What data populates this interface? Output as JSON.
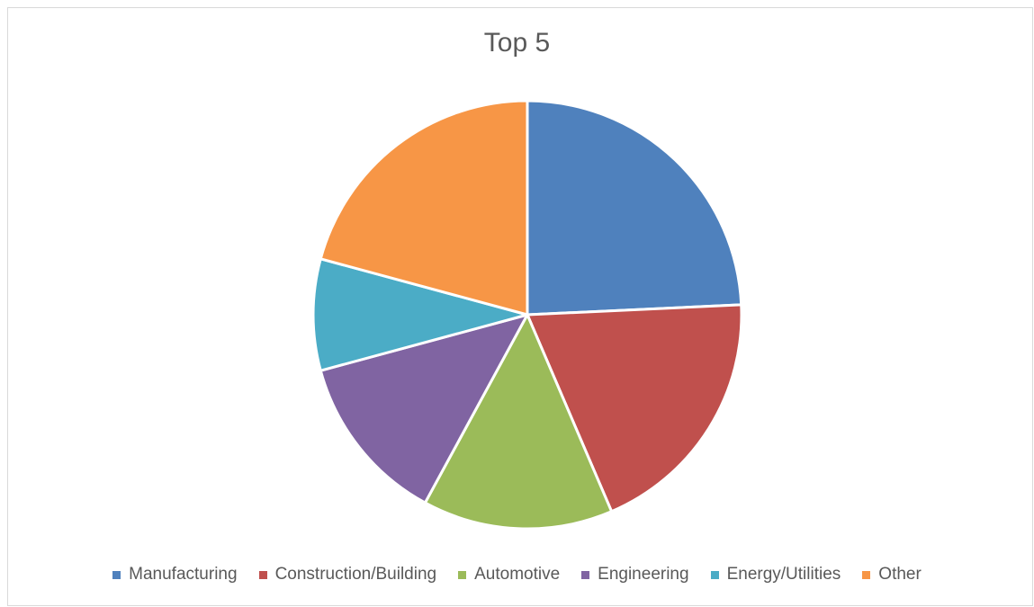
{
  "chart_data": {
    "type": "pie",
    "title": "Top 5",
    "legend_position": "bottom",
    "categories": [
      "Manufacturing",
      "Construction/Building",
      "Automotive",
      "Engineering",
      "Energy/Utilities",
      "Other"
    ],
    "values": [
      24.5,
      19.5,
      14.5,
      13.0,
      8.5,
      21.0
    ],
    "colors": [
      "#4f81bd",
      "#c0504d",
      "#9bbb59",
      "#8064a2",
      "#4bacc6",
      "#f79646"
    ]
  }
}
